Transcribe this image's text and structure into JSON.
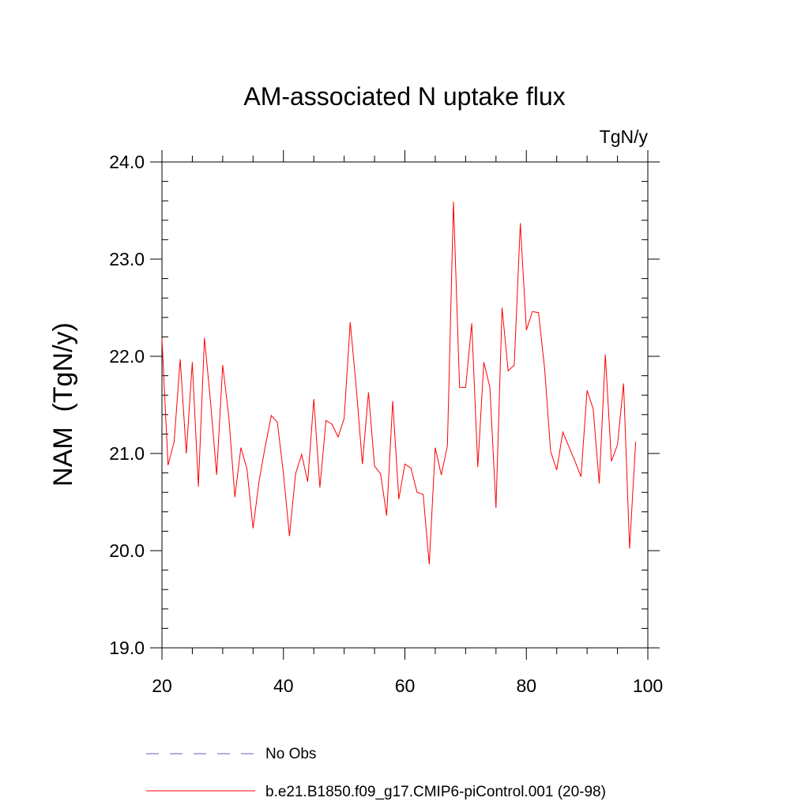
{
  "chart_data": {
    "type": "line",
    "title": "AM-associated N uptake flux",
    "units": "TgN/y",
    "xlabel": "",
    "ylabel": "NAM  (TgN/y)",
    "xlim": [
      20,
      100
    ],
    "ylim": [
      19.0,
      24.0
    ],
    "x_ticks": [
      20,
      40,
      60,
      80,
      100
    ],
    "x_tick_labels": [
      "20",
      "40",
      "60",
      "80",
      "100"
    ],
    "y_ticks": [
      19.0,
      20.0,
      21.0,
      22.0,
      23.0,
      24.0
    ],
    "y_tick_labels": [
      "19.0",
      "20.0",
      "21.0",
      "22.0",
      "23.0",
      "24.0"
    ],
    "legend_position": "bottom",
    "series": [
      {
        "name": "No Obs",
        "color": "#6a5acd",
        "dash": true,
        "x": [],
        "values": []
      },
      {
        "name": "b.e21.B1850.f09_g17.CMIP6-piControl.001 (20-98)",
        "color": "#ff0000",
        "dash": false,
        "x": [
          20,
          21,
          22,
          23,
          24,
          25,
          26,
          27,
          28,
          29,
          30,
          31,
          32,
          33,
          34,
          35,
          36,
          37,
          38,
          39,
          40,
          41,
          42,
          43,
          44,
          45,
          46,
          47,
          48,
          49,
          50,
          51,
          52,
          53,
          54,
          55,
          56,
          57,
          58,
          59,
          60,
          61,
          62,
          63,
          64,
          65,
          66,
          67,
          68,
          69,
          70,
          71,
          72,
          73,
          74,
          75,
          76,
          77,
          78,
          79,
          80,
          81,
          82,
          83,
          84,
          85,
          86,
          87,
          88,
          89,
          90,
          91,
          92,
          93,
          94,
          95,
          96,
          97,
          98
        ],
        "values": [
          22.18,
          20.88,
          21.12,
          21.97,
          21.0,
          21.94,
          20.66,
          22.19,
          21.53,
          20.78,
          21.91,
          21.38,
          20.55,
          21.06,
          20.84,
          20.23,
          20.72,
          21.07,
          21.39,
          21.32,
          20.79,
          20.15,
          20.79,
          20.99,
          20.71,
          21.56,
          20.65,
          21.34,
          21.3,
          21.17,
          21.36,
          22.35,
          21.67,
          20.89,
          21.63,
          20.87,
          20.79,
          20.36,
          21.54,
          20.53,
          20.89,
          20.85,
          20.6,
          20.58,
          19.86,
          21.06,
          20.78,
          21.08,
          23.59,
          21.68,
          21.68,
          22.34,
          20.86,
          21.94,
          21.68,
          20.44,
          22.5,
          21.85,
          21.91,
          23.37,
          22.27,
          22.46,
          22.45,
          21.88,
          21.02,
          20.83,
          21.22,
          21.07,
          20.92,
          20.76,
          21.65,
          21.46,
          20.69,
          22.02,
          20.92,
          21.09,
          21.72,
          20.02,
          21.12
        ]
      }
    ]
  }
}
